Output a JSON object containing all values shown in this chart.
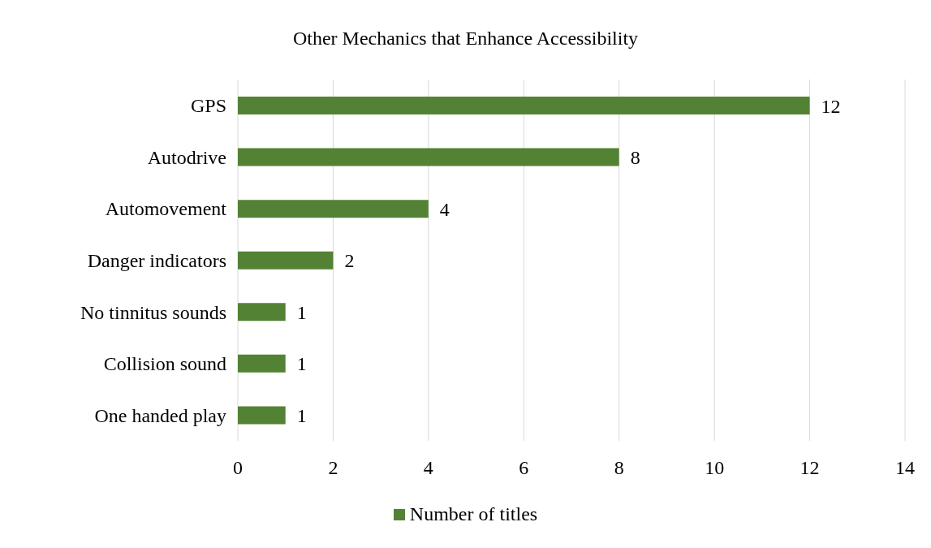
{
  "chart_data": {
    "type": "bar",
    "orientation": "horizontal",
    "title": "Other Mechanics that Enhance Accessibility",
    "categories": [
      "GPS",
      "Autodrive",
      "Automovement",
      "Danger indicators",
      "No tinnitus sounds",
      "Collision sound",
      "One handed play"
    ],
    "series": [
      {
        "name": "Number of titles",
        "color": "#548235",
        "values": [
          12,
          8,
          4,
          2,
          1,
          1,
          1
        ]
      }
    ],
    "xlim": [
      0,
      14
    ],
    "xticks": [
      0,
      2,
      4,
      6,
      8,
      10,
      12,
      14
    ],
    "grid": "x",
    "legend": "bottom",
    "data_labels": true
  }
}
